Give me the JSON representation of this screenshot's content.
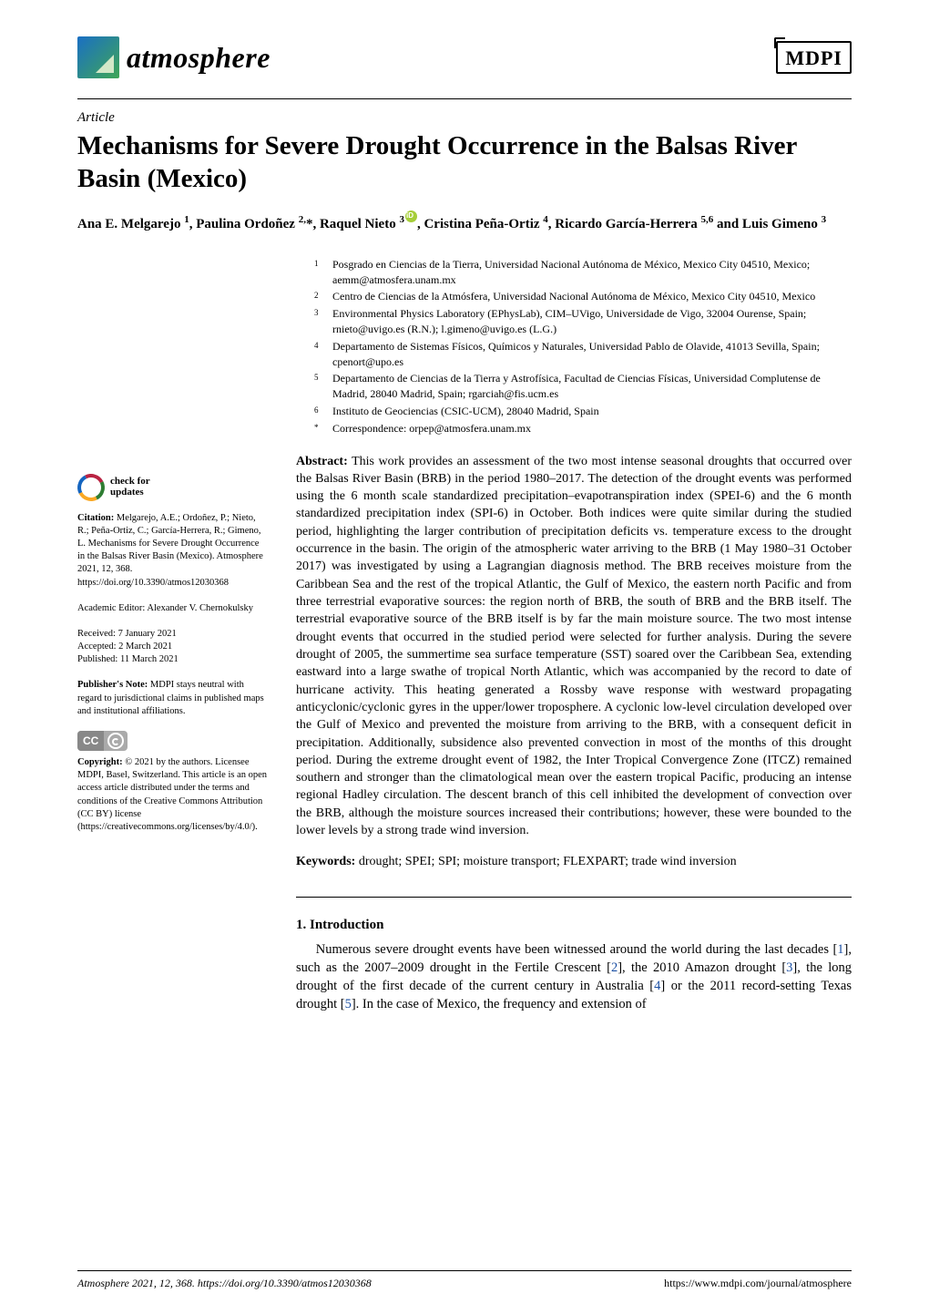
{
  "journal": {
    "name": "atmosphere",
    "publisher": "MDPI"
  },
  "article_type": "Article",
  "title": "Mechanisms for Severe Drought Occurrence in the Balsas River Basin (Mexico)",
  "authors_html": "Ana E. Melgarejo <sup>1</sup>, Paulina Ordoñez <sup>2,</sup>*, Raquel Nieto <sup>3</sup><span class='orcid' data-name='orcid-icon' data-interactable='false'></span>, Cristina Peña-Ortiz <sup>4</sup>, Ricardo García-Herrera <sup>5,6</sup> and Luis Gimeno <sup>3</sup>",
  "affiliations": [
    {
      "n": "1",
      "t": "Posgrado en Ciencias de la Tierra, Universidad Nacional Autónoma de México, Mexico City 04510, Mexico; aemm@atmosfera.unam.mx"
    },
    {
      "n": "2",
      "t": "Centro de Ciencias de la Atmósfera, Universidad Nacional Autónoma de México, Mexico City 04510, Mexico"
    },
    {
      "n": "3",
      "t": "Environmental Physics Laboratory (EPhysLab), CIM–UVigo, Universidade de Vigo, 32004 Ourense, Spain; rnieto@uvigo.es (R.N.); l.gimeno@uvigo.es (L.G.)"
    },
    {
      "n": "4",
      "t": "Departamento de Sistemas Físicos, Químicos y Naturales, Universidad Pablo de Olavide, 41013 Sevilla, Spain; cpenort@upo.es"
    },
    {
      "n": "5",
      "t": "Departamento de Ciencias de la Tierra y Astrofísica, Facultad de Ciencias Físicas, Universidad Complutense de Madrid, 28040 Madrid, Spain; rgarciah@fis.ucm.es"
    },
    {
      "n": "6",
      "t": "Instituto de Geociencias (CSIC-UCM), 28040 Madrid, Spain"
    },
    {
      "n": "*",
      "t": "Correspondence: orpep@atmosfera.unam.mx"
    }
  ],
  "abstract_label": "Abstract:",
  "abstract": "This work provides an assessment of the two most intense seasonal droughts that occurred over the Balsas River Basin (BRB) in the period 1980–2017. The detection of the drought events was performed using the 6 month scale standardized precipitation–evapotranspiration index (SPEI-6) and the 6 month standardized precipitation index (SPI-6) in October. Both indices were quite similar during the studied period, highlighting the larger contribution of precipitation deficits vs. temperature excess to the drought occurrence in the basin. The origin of the atmospheric water arriving to the BRB (1 May 1980–31 October 2017) was investigated by using a Lagrangian diagnosis method. The BRB receives moisture from the Caribbean Sea and the rest of the tropical Atlantic, the Gulf of Mexico, the eastern north Pacific and from three terrestrial evaporative sources: the region north of BRB, the south of BRB and the BRB itself. The terrestrial evaporative source of the BRB itself is by far the main moisture source. The two most intense drought events that occurred in the studied period were selected for further analysis. During the severe drought of 2005, the summertime sea surface temperature (SST) soared over the Caribbean Sea, extending eastward into a large swathe of tropical North Atlantic, which was accompanied by the record to date of hurricane activity. This heating generated a Rossby wave response with westward propagating anticyclonic/cyclonic gyres in the upper/lower troposphere. A cyclonic low-level circulation developed over the Gulf of Mexico and prevented the moisture from arriving to the BRB, with a consequent deficit in precipitation. Additionally, subsidence also prevented convection in most of the months of this drought period. During the extreme drought event of 1982, the Inter Tropical Convergence Zone (ITCZ) remained southern and stronger than the climatological mean over the eastern tropical Pacific, producing an intense regional Hadley circulation. The descent branch of this cell inhibited the development of convection over the BRB, although the moisture sources increased their contributions; however, these were bounded to the lower levels by a strong trade wind inversion.",
  "keywords_label": "Keywords:",
  "keywords": "drought; SPEI; SPI; moisture transport; FLEXPART; trade wind inversion",
  "section1": "1. Introduction",
  "intro_para": "Numerous severe drought events have been witnessed around the world during the last decades [1], such as the 2007–2009 drought in the Fertile Crescent [2], the 2010 Amazon drought [3], the long drought of the first decade of the current century in Australia [4] or the 2011 record-setting Texas drought [5]. In the case of Mexico, the frequency and extension of",
  "sidebar": {
    "check_updates": "check for\nupdates",
    "citation_label": "Citation:",
    "citation": "Melgarejo, A.E.; Ordoñez, P.; Nieto, R.; Peña-Ortiz, C.; García-Herrera, R.; Gimeno, L. Mechanisms for Severe Drought Occurrence in the Balsas River Basin (Mexico). Atmosphere 2021, 12, 368. https://doi.org/10.3390/atmos12030368",
    "editor_label": "Academic Editor:",
    "editor": "Alexander V. Chernokulsky",
    "received": "Received: 7 January 2021",
    "accepted": "Accepted: 2 March 2021",
    "published": "Published: 11 March 2021",
    "pubnote_label": "Publisher's Note:",
    "pubnote": "MDPI stays neutral with regard to jurisdictional claims in published maps and institutional affiliations.",
    "copyright_label": "Copyright:",
    "copyright": "© 2021 by the authors. Licensee MDPI, Basel, Switzerland. This article is an open access article distributed under the terms and conditions of the Creative Commons Attribution (CC BY) license (https://creativecommons.org/licenses/by/4.0/)."
  },
  "footer": {
    "left": "Atmosphere 2021, 12, 368. https://doi.org/10.3390/atmos12030368",
    "right": "https://www.mdpi.com/journal/atmosphere"
  },
  "colors": {
    "ref_link": "#1a4fa3"
  }
}
